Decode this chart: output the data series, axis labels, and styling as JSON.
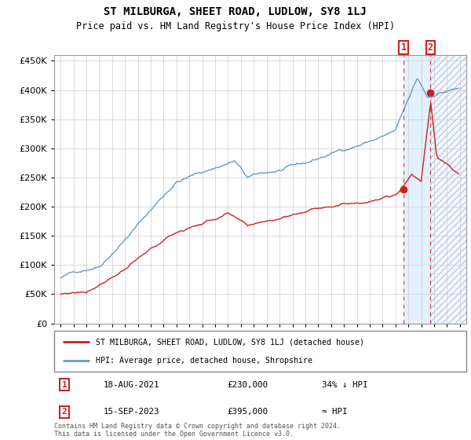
{
  "title": "ST MILBURGA, SHEET ROAD, LUDLOW, SY8 1LJ",
  "subtitle": "Price paid vs. HM Land Registry's House Price Index (HPI)",
  "legend_line1": "ST MILBURGA, SHEET ROAD, LUDLOW, SY8 1LJ (detached house)",
  "legend_line2": "HPI: Average price, detached house, Shropshire",
  "annotation1_label": "1",
  "annotation1_date": "18-AUG-2021",
  "annotation1_price": "£230,000",
  "annotation1_hpi": "34% ↓ HPI",
  "annotation2_label": "2",
  "annotation2_date": "15-SEP-2023",
  "annotation2_price": "£395,000",
  "annotation2_hpi": "≈ HPI",
  "footer": "Contains HM Land Registry data © Crown copyright and database right 2024.\nThis data is licensed under the Open Government Licence v3.0.",
  "hpi_color": "#6699cc",
  "price_color": "#cc2222",
  "sale1_x": 2021.63,
  "sale1_y": 230000,
  "sale2_x": 2023.71,
  "sale2_y": 395000,
  "vline1_x": 2021.63,
  "vline2_x": 2023.71,
  "shade_start": 2021.63,
  "shade_end": 2026.5,
  "hatch_start": 2023.71,
  "hatch_end": 2026.5,
  "ylim": [
    0,
    460000
  ],
  "xlim": [
    1994.5,
    2026.5
  ],
  "yticks": [
    0,
    50000,
    100000,
    150000,
    200000,
    250000,
    300000,
    350000,
    400000,
    450000
  ]
}
